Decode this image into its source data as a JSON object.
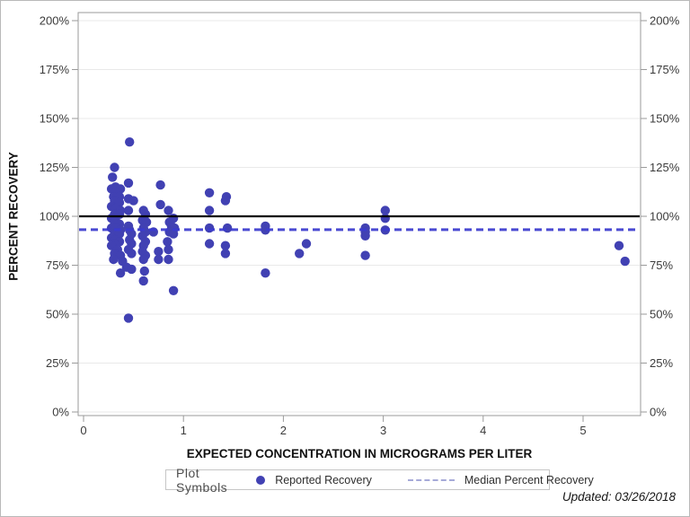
{
  "figure": {
    "background": "#ffffff",
    "border_color": "#b9b9b9"
  },
  "footer": {
    "updated": "Updated: 03/26/2018"
  },
  "chart_data": {
    "type": "scatter",
    "title": "",
    "xlabel": "EXPECTED CONCENTRATION IN MICROGRAMS PER LITER",
    "ylabel": "PERCENT RECOVERY",
    "xlim": [
      -0.05,
      5.58
    ],
    "ylim_percent": [
      -2,
      204
    ],
    "grid": "horizontal-only",
    "x_tick_values": [
      0,
      1,
      2,
      3,
      4,
      5
    ],
    "x_tick_labels": [
      "0",
      "1",
      "2",
      "3",
      "4",
      "5"
    ],
    "y_tick_values": [
      0,
      25,
      50,
      75,
      100,
      125,
      150,
      175,
      200
    ],
    "y_tick_labels": [
      "0%",
      "25%",
      "50%",
      "75%",
      "100%",
      "125%",
      "150%",
      "175%",
      "200%"
    ],
    "y_axis_mirrored": true,
    "colors": {
      "marker": "#4141b3",
      "median_line": "#3b3bcf",
      "reference_line": "#000000",
      "frame": "#9a9a9a",
      "gridline": "#e9e9e9",
      "tick_label": "#3b3b3b"
    },
    "reference_lines": [
      {
        "name": "100 percent reference",
        "value_percent": 100,
        "style": "solid",
        "color": "#000000",
        "width": 2.2
      },
      {
        "name": "Median Percent Recovery",
        "value_percent": 93.2,
        "style": "dashed",
        "color": "#3b3bcf",
        "width": 3
      }
    ],
    "legend": {
      "title": "Plot Symbols",
      "position": "bottom-center",
      "entries": [
        {
          "label": "Reported Recovery",
          "marker": "filled-circle",
          "color": "#4141b3"
        },
        {
          "label": "Median Percent Recovery",
          "marker": "dashed-line",
          "color": "#a6aad8"
        }
      ]
    },
    "series": [
      {
        "name": "Reported Recovery",
        "marker": "circle",
        "color": "#4141b3",
        "points_x_ugL_y_pct": [
          [
            0.31,
            125
          ],
          [
            0.29,
            120
          ],
          [
            0.28,
            114
          ],
          [
            0.32,
            115
          ],
          [
            0.37,
            114
          ],
          [
            0.32,
            112
          ],
          [
            0.3,
            110
          ],
          [
            0.36,
            110
          ],
          [
            0.31,
            108
          ],
          [
            0.36,
            107
          ],
          [
            0.28,
            105
          ],
          [
            0.32,
            104
          ],
          [
            0.37,
            103
          ],
          [
            0.31,
            101
          ],
          [
            0.36,
            101
          ],
          [
            0.28,
            99
          ],
          [
            0.32,
            98
          ],
          [
            0.31,
            97
          ],
          [
            0.36,
            96
          ],
          [
            0.28,
            94
          ],
          [
            0.32,
            94
          ],
          [
            0.37,
            93
          ],
          [
            0.31,
            91
          ],
          [
            0.36,
            91
          ],
          [
            0.28,
            89
          ],
          [
            0.32,
            88
          ],
          [
            0.36,
            87
          ],
          [
            0.31,
            86
          ],
          [
            0.28,
            85
          ],
          [
            0.34,
            83
          ],
          [
            0.31,
            81
          ],
          [
            0.37,
            80
          ],
          [
            0.3,
            78
          ],
          [
            0.39,
            77
          ],
          [
            0.37,
            71
          ],
          [
            0.46,
            138
          ],
          [
            0.45,
            117
          ],
          [
            0.45,
            109
          ],
          [
            0.5,
            108
          ],
          [
            0.45,
            103
          ],
          [
            0.45,
            95
          ],
          [
            0.46,
            93
          ],
          [
            0.48,
            91
          ],
          [
            0.46,
            88
          ],
          [
            0.48,
            86
          ],
          [
            0.45,
            83
          ],
          [
            0.48,
            81
          ],
          [
            0.43,
            74
          ],
          [
            0.48,
            73
          ],
          [
            0.45,
            48
          ],
          [
            0.6,
            103
          ],
          [
            0.62,
            101
          ],
          [
            0.59,
            98
          ],
          [
            0.63,
            97
          ],
          [
            0.6,
            94
          ],
          [
            0.62,
            92
          ],
          [
            0.59,
            90
          ],
          [
            0.62,
            87
          ],
          [
            0.6,
            85
          ],
          [
            0.59,
            82
          ],
          [
            0.62,
            80
          ],
          [
            0.6,
            78
          ],
          [
            0.61,
            72
          ],
          [
            0.6,
            67
          ],
          [
            0.77,
            116
          ],
          [
            0.77,
            106
          ],
          [
            0.7,
            92
          ],
          [
            0.75,
            82
          ],
          [
            0.75,
            78
          ],
          [
            0.85,
            103
          ],
          [
            0.9,
            99
          ],
          [
            0.86,
            97
          ],
          [
            0.88,
            95
          ],
          [
            0.91,
            94
          ],
          [
            0.86,
            92
          ],
          [
            0.9,
            91
          ],
          [
            0.84,
            87
          ],
          [
            0.85,
            83
          ],
          [
            0.85,
            78
          ],
          [
            0.9,
            62
          ],
          [
            1.26,
            112
          ],
          [
            1.26,
            103
          ],
          [
            1.26,
            94
          ],
          [
            1.26,
            86
          ],
          [
            1.43,
            110
          ],
          [
            1.42,
            108
          ],
          [
            1.44,
            94
          ],
          [
            1.42,
            85
          ],
          [
            1.42,
            81
          ],
          [
            1.82,
            95
          ],
          [
            1.82,
            93
          ],
          [
            1.82,
            71
          ],
          [
            2.16,
            81
          ],
          [
            2.23,
            86
          ],
          [
            2.82,
            94
          ],
          [
            2.82,
            92
          ],
          [
            2.82,
            90
          ],
          [
            2.82,
            80
          ],
          [
            3.02,
            103
          ],
          [
            3.02,
            99
          ],
          [
            3.02,
            93
          ],
          [
            5.36,
            85
          ],
          [
            5.42,
            77
          ]
        ]
      }
    ]
  }
}
